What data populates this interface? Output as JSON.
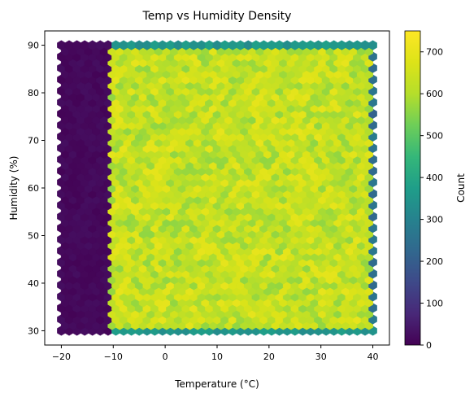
{
  "chart_data": {
    "type": "heatmap",
    "subtype": "hexbin",
    "title": "Temp vs Humidity Density",
    "xlabel": "Temperature (°C)",
    "ylabel": "Humidity (%)",
    "xlim": [
      -23.2,
      43.2
    ],
    "ylim": [
      27.0,
      93.0
    ],
    "x_ticks": [
      -20,
      -10,
      0,
      10,
      20,
      30,
      40
    ],
    "y_ticks": [
      30,
      40,
      50,
      60,
      70,
      80,
      90
    ],
    "x_tick_labels": [
      "−20",
      "−10",
      "0",
      "10",
      "20",
      "30",
      "40"
    ],
    "y_tick_labels": [
      "30",
      "40",
      "50",
      "60",
      "70",
      "80",
      "90"
    ],
    "grid": false,
    "colorbar": {
      "label": "Count",
      "min": 0,
      "max": 750,
      "ticks": [
        0,
        100,
        200,
        300,
        400,
        500,
        600,
        700
      ],
      "tick_labels": [
        "0",
        "100",
        "200",
        "300",
        "400",
        "500",
        "600",
        "700"
      ],
      "colormap": "viridis"
    },
    "series": [
      {
        "region": "temperature -20 to -10",
        "approx_count_per_bin": 15
      },
      {
        "region": "temperature -10 to 40, humidity 30 to 90 interior",
        "approx_count_per_bin": 630
      },
      {
        "region": "humidity edge rows at 30 and 90",
        "approx_count_per_bin": 350
      },
      {
        "region": "temperature edge column at 40",
        "approx_count_per_bin": 250
      }
    ]
  }
}
